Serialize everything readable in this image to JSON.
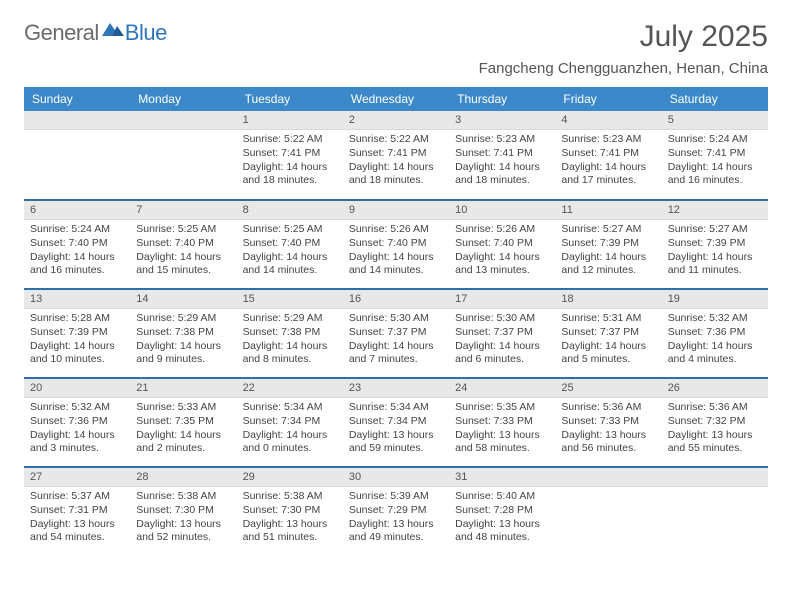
{
  "logo": {
    "general": "General",
    "blue": "Blue"
  },
  "title": {
    "month": "July 2025",
    "location": "Fangcheng Chengguanzhen, Henan, China"
  },
  "colors": {
    "header_bg": "#3b89c9",
    "sep": "#2f6fa8",
    "daynum_bg": "#e8e8e8"
  },
  "dayNames": [
    "Sunday",
    "Monday",
    "Tuesday",
    "Wednesday",
    "Thursday",
    "Friday",
    "Saturday"
  ],
  "startWeekday": 2,
  "daysInMonth": 31,
  "days": [
    {
      "n": 1,
      "sr": "5:22 AM",
      "ss": "7:41 PM",
      "dl": "14 hours and 18 minutes."
    },
    {
      "n": 2,
      "sr": "5:22 AM",
      "ss": "7:41 PM",
      "dl": "14 hours and 18 minutes."
    },
    {
      "n": 3,
      "sr": "5:23 AM",
      "ss": "7:41 PM",
      "dl": "14 hours and 18 minutes."
    },
    {
      "n": 4,
      "sr": "5:23 AM",
      "ss": "7:41 PM",
      "dl": "14 hours and 17 minutes."
    },
    {
      "n": 5,
      "sr": "5:24 AM",
      "ss": "7:41 PM",
      "dl": "14 hours and 16 minutes."
    },
    {
      "n": 6,
      "sr": "5:24 AM",
      "ss": "7:40 PM",
      "dl": "14 hours and 16 minutes."
    },
    {
      "n": 7,
      "sr": "5:25 AM",
      "ss": "7:40 PM",
      "dl": "14 hours and 15 minutes."
    },
    {
      "n": 8,
      "sr": "5:25 AM",
      "ss": "7:40 PM",
      "dl": "14 hours and 14 minutes."
    },
    {
      "n": 9,
      "sr": "5:26 AM",
      "ss": "7:40 PM",
      "dl": "14 hours and 14 minutes."
    },
    {
      "n": 10,
      "sr": "5:26 AM",
      "ss": "7:40 PM",
      "dl": "14 hours and 13 minutes."
    },
    {
      "n": 11,
      "sr": "5:27 AM",
      "ss": "7:39 PM",
      "dl": "14 hours and 12 minutes."
    },
    {
      "n": 12,
      "sr": "5:27 AM",
      "ss": "7:39 PM",
      "dl": "14 hours and 11 minutes."
    },
    {
      "n": 13,
      "sr": "5:28 AM",
      "ss": "7:39 PM",
      "dl": "14 hours and 10 minutes."
    },
    {
      "n": 14,
      "sr": "5:29 AM",
      "ss": "7:38 PM",
      "dl": "14 hours and 9 minutes."
    },
    {
      "n": 15,
      "sr": "5:29 AM",
      "ss": "7:38 PM",
      "dl": "14 hours and 8 minutes."
    },
    {
      "n": 16,
      "sr": "5:30 AM",
      "ss": "7:37 PM",
      "dl": "14 hours and 7 minutes."
    },
    {
      "n": 17,
      "sr": "5:30 AM",
      "ss": "7:37 PM",
      "dl": "14 hours and 6 minutes."
    },
    {
      "n": 18,
      "sr": "5:31 AM",
      "ss": "7:37 PM",
      "dl": "14 hours and 5 minutes."
    },
    {
      "n": 19,
      "sr": "5:32 AM",
      "ss": "7:36 PM",
      "dl": "14 hours and 4 minutes."
    },
    {
      "n": 20,
      "sr": "5:32 AM",
      "ss": "7:36 PM",
      "dl": "14 hours and 3 minutes."
    },
    {
      "n": 21,
      "sr": "5:33 AM",
      "ss": "7:35 PM",
      "dl": "14 hours and 2 minutes."
    },
    {
      "n": 22,
      "sr": "5:34 AM",
      "ss": "7:34 PM",
      "dl": "14 hours and 0 minutes."
    },
    {
      "n": 23,
      "sr": "5:34 AM",
      "ss": "7:34 PM",
      "dl": "13 hours and 59 minutes."
    },
    {
      "n": 24,
      "sr": "5:35 AM",
      "ss": "7:33 PM",
      "dl": "13 hours and 58 minutes."
    },
    {
      "n": 25,
      "sr": "5:36 AM",
      "ss": "7:33 PM",
      "dl": "13 hours and 56 minutes."
    },
    {
      "n": 26,
      "sr": "5:36 AM",
      "ss": "7:32 PM",
      "dl": "13 hours and 55 minutes."
    },
    {
      "n": 27,
      "sr": "5:37 AM",
      "ss": "7:31 PM",
      "dl": "13 hours and 54 minutes."
    },
    {
      "n": 28,
      "sr": "5:38 AM",
      "ss": "7:30 PM",
      "dl": "13 hours and 52 minutes."
    },
    {
      "n": 29,
      "sr": "5:38 AM",
      "ss": "7:30 PM",
      "dl": "13 hours and 51 minutes."
    },
    {
      "n": 30,
      "sr": "5:39 AM",
      "ss": "7:29 PM",
      "dl": "13 hours and 49 minutes."
    },
    {
      "n": 31,
      "sr": "5:40 AM",
      "ss": "7:28 PM",
      "dl": "13 hours and 48 minutes."
    }
  ],
  "labels": {
    "sunrise": "Sunrise: ",
    "sunset": "Sunset: ",
    "daylight": "Daylight: "
  }
}
